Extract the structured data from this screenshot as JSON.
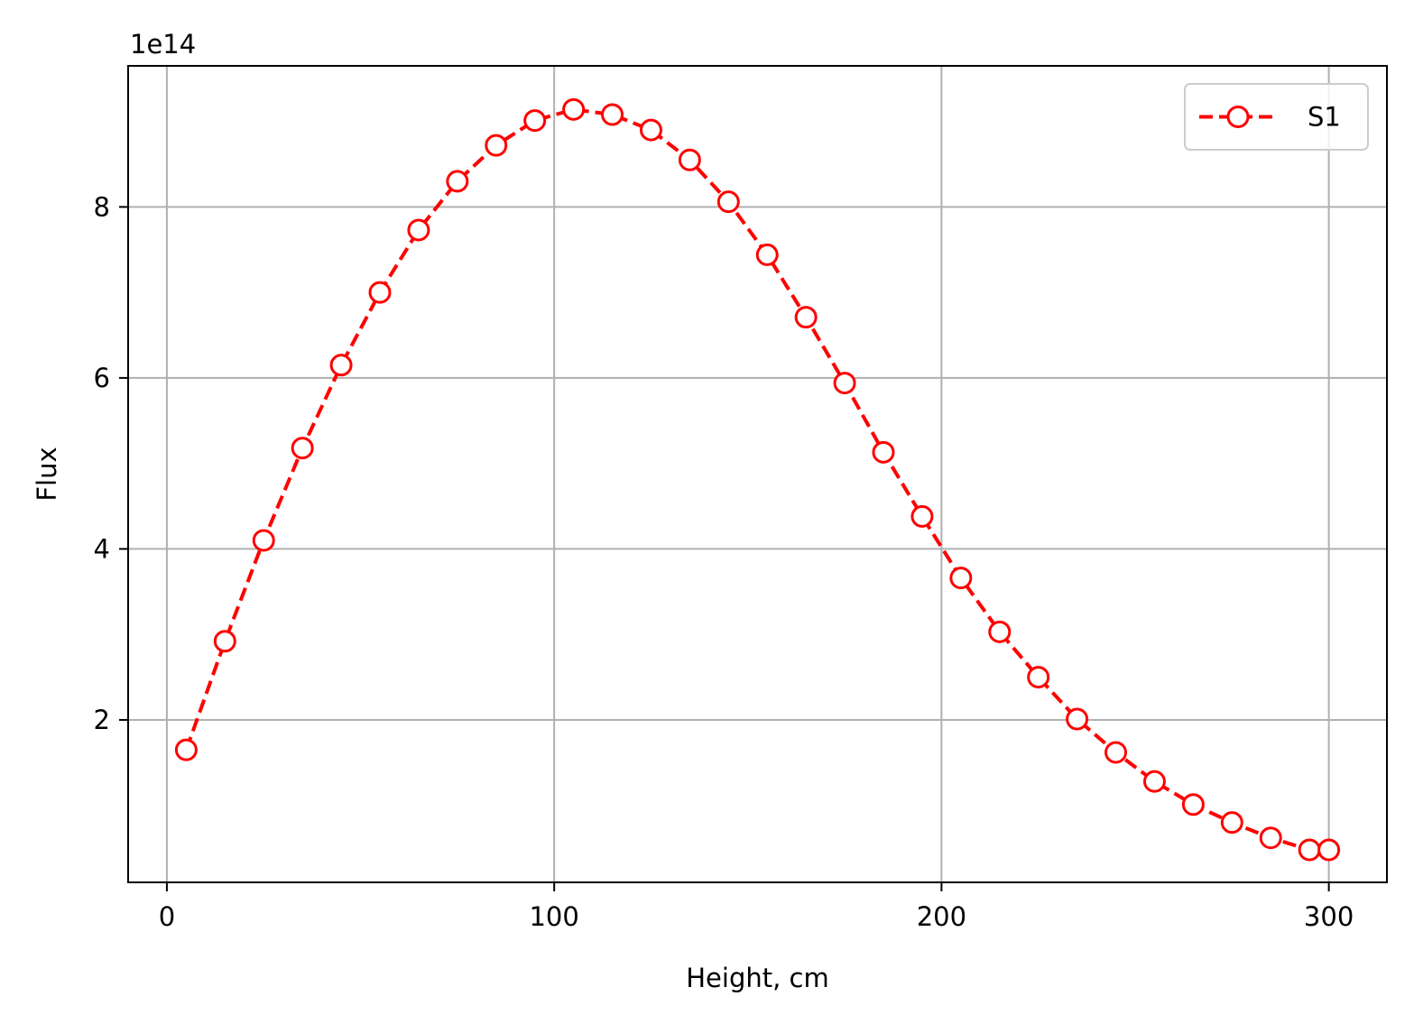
{
  "chart_data": {
    "type": "line",
    "xlabel": "Height, cm",
    "ylabel": "Flux",
    "y_offset_text": "1e14",
    "xlim": [
      -10,
      315
    ],
    "ylim": [
      0.1,
      9.65
    ],
    "xticks": [
      0,
      100,
      200,
      300
    ],
    "yticks": [
      2,
      4,
      6,
      8
    ],
    "x_tick_labels": [
      "0",
      "100",
      "200",
      "300"
    ],
    "y_tick_labels": [
      "2",
      "4",
      "6",
      "8"
    ],
    "grid": true,
    "legend_position": "top-right",
    "series": [
      {
        "name": "S1",
        "color": "#ff0000",
        "line_style": "dashed",
        "marker": "open-circle",
        "x": [
          5,
          15,
          25,
          35,
          45,
          55,
          65,
          75,
          85,
          95,
          105,
          115,
          125,
          135,
          145,
          155,
          165,
          175,
          185,
          195,
          205,
          215,
          225,
          235,
          245,
          255,
          265,
          275,
          285,
          295,
          300
        ],
        "y": [
          1.65,
          2.92,
          4.1,
          5.18,
          6.15,
          7.0,
          7.73,
          8.3,
          8.72,
          9.01,
          9.14,
          9.08,
          8.9,
          8.55,
          8.06,
          7.44,
          6.71,
          5.94,
          5.13,
          4.38,
          3.66,
          3.03,
          2.5,
          2.01,
          1.62,
          1.28,
          1.01,
          0.8,
          0.62,
          0.48,
          0.48
        ]
      }
    ]
  }
}
